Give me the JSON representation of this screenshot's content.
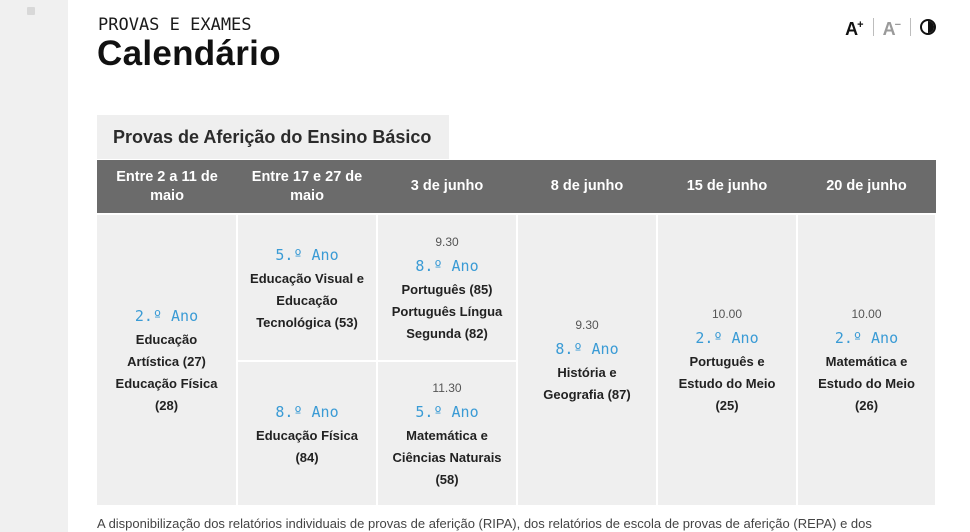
{
  "header": {
    "eyebrow": "PROVAS E EXAMES",
    "title": "Calendário"
  },
  "accessibility": {
    "increase_label": "A",
    "decrease_label": "A",
    "icons": [
      "font-increase-icon",
      "font-decrease-icon",
      "contrast-icon"
    ]
  },
  "section": {
    "title": "Provas de Aferição do Ensino Básico"
  },
  "table": {
    "columns": [
      "Entre 2 a 11 de maio",
      "Entre 17 e 27 de maio",
      "3 de junho",
      "8 de junho",
      "15 de junho",
      "20 de junho"
    ],
    "col1": {
      "year": "2.º Ano",
      "line1": "Educação",
      "line2": "Artística (27)",
      "line3": "Educação Física",
      "line4": "(28)"
    },
    "col2_top": {
      "year": "5.º Ano",
      "line1": "Educação Visual e",
      "line2": "Educação",
      "line3": "Tecnológica (53)"
    },
    "col2_bottom": {
      "year": "8.º Ano",
      "line1": "Educação Física",
      "line2": "(84)"
    },
    "col3_top": {
      "time": "9.30",
      "year": "8.º Ano",
      "line1": "Português (85)",
      "line2": "Português Língua",
      "line3": "Segunda (82)"
    },
    "col3_bottom": {
      "time": "11.30",
      "year": "5.º Ano",
      "line1": "Matemática e",
      "line2": "Ciências Naturais",
      "line3": "(58)"
    },
    "col4": {
      "time": "9.30",
      "year": "8.º Ano",
      "line1": "História e",
      "line2": "Geografia (87)"
    },
    "col5": {
      "time": "10.00",
      "year": "2.º Ano",
      "line1": "Português e",
      "line2": "Estudo do Meio",
      "line3": "(25)"
    },
    "col6": {
      "time": "10.00",
      "year": "2.º Ano",
      "line1": "Matemática e",
      "line2": "Estudo do Meio",
      "line3": "(26)"
    }
  },
  "footnote": "A disponibilização dos relatórios individuais de provas de aferição (RIPA), dos relatórios de escola de provas de aferição (REPA) e dos",
  "colors": {
    "header_bg": "#6b6b6b",
    "cell_bg": "#efefef",
    "accent": "#3a9bd5"
  }
}
